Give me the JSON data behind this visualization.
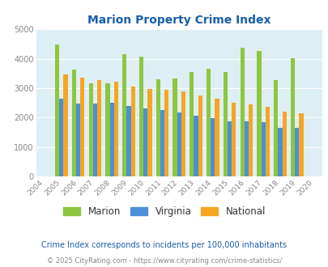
{
  "title": "Marion Property Crime Index",
  "years": [
    2004,
    2005,
    2006,
    2007,
    2008,
    2009,
    2010,
    2011,
    2012,
    2013,
    2014,
    2015,
    2016,
    2017,
    2018,
    2019,
    2020
  ],
  "marion": [
    null,
    4480,
    3620,
    3150,
    3150,
    4150,
    4080,
    3300,
    3330,
    3560,
    3660,
    3560,
    4380,
    4260,
    3260,
    4020,
    null
  ],
  "virginia": [
    null,
    2640,
    2480,
    2480,
    2500,
    2400,
    2320,
    2260,
    2160,
    2060,
    1970,
    1880,
    1880,
    1830,
    1660,
    1640,
    null
  ],
  "national": [
    null,
    3470,
    3360,
    3260,
    3220,
    3060,
    2960,
    2950,
    2890,
    2750,
    2630,
    2490,
    2460,
    2360,
    2200,
    2140,
    null
  ],
  "marion_color": "#8dc63f",
  "virginia_color": "#4a90d9",
  "national_color": "#f5a623",
  "bg_color": "#ddeef5",
  "ylim": [
    0,
    5000
  ],
  "yticks": [
    0,
    1000,
    2000,
    3000,
    4000,
    5000
  ],
  "subtitle": "Crime Index corresponds to incidents per 100,000 inhabitants",
  "footer": "© 2025 CityRating.com - https://www.cityrating.com/crime-statistics/",
  "legend_labels": [
    "Marion",
    "Virginia",
    "National"
  ],
  "title_color": "#1a5fa8",
  "subtitle_color": "#1a5fa8",
  "footer_color": "#888888",
  "tick_color": "#888888"
}
